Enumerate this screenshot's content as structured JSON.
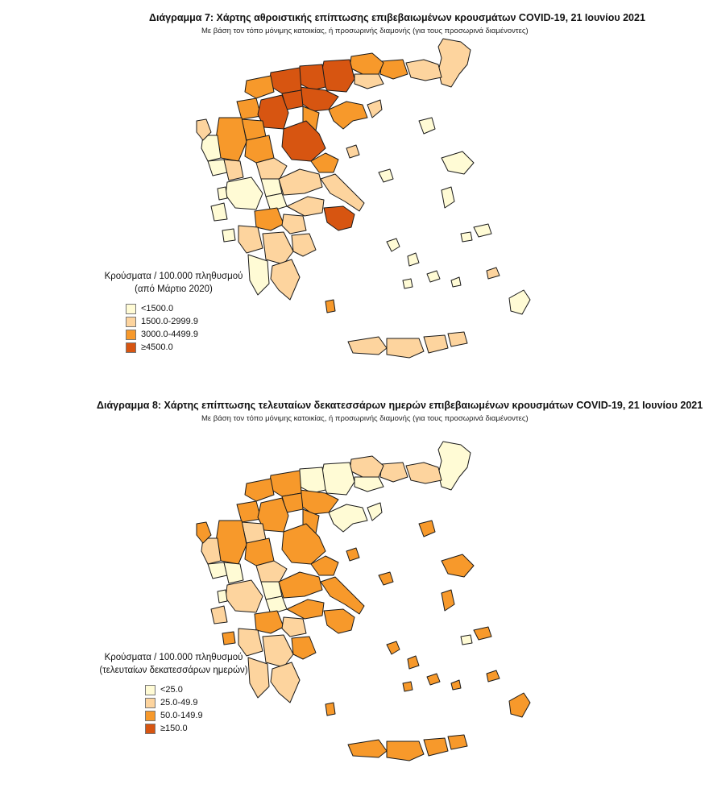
{
  "colors": {
    "c1": "#fffbd5",
    "c2": "#fdd49e",
    "c3": "#f7992b",
    "c4": "#d75511",
    "border": "#1a1a1a"
  },
  "maps": [
    {
      "title": "Διάγραμμα 7: Χάρτης αθροιστικής επίπτωσης επιβεβαιωμένων κρουσμάτων COVID-19, 21 Ιουνίου 2021",
      "subtitle": "Με βάση τον τόπο μόνιμης κατοικίας, ή προσωρινής διαμονής (για τους προσωρινά διαμένοντες)",
      "legend": {
        "title_line1": "Κρούσματα / 100.000 πληθυσμού",
        "title_line2": "(από Μάρτιο 2020)",
        "items": [
          {
            "label": "<1500.0",
            "class": "c1"
          },
          {
            "label": "1500.0-2999.9",
            "class": "c2"
          },
          {
            "label": "3000.0-4499.9",
            "class": "c3"
          },
          {
            "label": "≥4500.0",
            "class": "c4"
          }
        ]
      },
      "region_classes": {
        "evros": "c2",
        "rodopi": "c2",
        "xanthi": "c3",
        "drama": "c3",
        "kavala": "c2",
        "thasos": "c3",
        "serres": "c4",
        "kilkis": "c4",
        "thessaloniki": "c4",
        "chalkidiki": "c3",
        "athos": "c2",
        "pella": "c4",
        "imathia": "c4",
        "pieria": "c3",
        "florina": "c3",
        "kastoria": "c3",
        "kozani": "c4",
        "grevena": "c3",
        "thesprotia": "c1",
        "ioannina": "c3",
        "corfu": "c2",
        "preveza": "c1",
        "arta": "c2",
        "trikala": "c3",
        "karditsa": "c2",
        "larisa": "c4",
        "magnesia": "c3",
        "aitoloakarnania": "c1",
        "evrytania": "c1",
        "fthiotida": "c2",
        "fokida": "c1",
        "viotia": "c2",
        "evia": "c2",
        "lefkada": "c1",
        "kefalonia": "c1",
        "zakynthos": "c1",
        "achaia": "c3",
        "ilia": "c2",
        "korinthia": "c2",
        "attica": "c4",
        "argolida": "c2",
        "arkadia": "c2",
        "messinia": "c1",
        "lakonia": "c2",
        "kythira": "c3",
        "lesvos": "c1",
        "chios": "c1",
        "samos": "c1",
        "limnos": "c1",
        "ikaria": "c1",
        "rhodes": "c1",
        "kos": "c2",
        "cyclades": "c1",
        "crete_west": "c2",
        "crete_central": "c2",
        "crete_east": "c2",
        "crete_far": "c2",
        "skyros": "c1",
        "sporades": "c2"
      }
    },
    {
      "title": "Διάγραμμα 8: Χάρτης επίπτωσης τελευταίων δεκατεσσάρων ημερών επιβεβαιωμένων κρουσμάτων COVID-19, 21 Ιουνίου 2021",
      "subtitle": "Με βάση τον τόπο μόνιμης κατοικίας, ή προσωρινής διαμονής (για τους προσωρινά διαμένοντες)",
      "legend": {
        "title_line1": "Κρούσματα / 100.000 πληθυσμού",
        "title_line2": "(τελευταίων δεκατεσσάρων ημερών)",
        "items": [
          {
            "label": "<25.0",
            "class": "c1"
          },
          {
            "label": "25.0-49.9",
            "class": "c2"
          },
          {
            "label": "50.0-149.9",
            "class": "c3"
          },
          {
            "label": "≥150.0",
            "class": "c4"
          }
        ]
      },
      "region_classes": {
        "evros": "c1",
        "rodopi": "c2",
        "xanthi": "c2",
        "drama": "c2",
        "kavala": "c1",
        "thasos": "c1",
        "serres": "c1",
        "kilkis": "c1",
        "thessaloniki": "c3",
        "chalkidiki": "c1",
        "athos": "c1",
        "pella": "c3",
        "imathia": "c3",
        "pieria": "c3",
        "florina": "c3",
        "kastoria": "c3",
        "kozani": "c3",
        "grevena": "c2",
        "thesprotia": "c2",
        "ioannina": "c3",
        "corfu": "c3",
        "preveza": "c1",
        "arta": "c1",
        "trikala": "c3",
        "karditsa": "c2",
        "larisa": "c3",
        "magnesia": "c3",
        "aitoloakarnania": "c2",
        "evrytania": "c1",
        "fthiotida": "c3",
        "fokida": "c1",
        "viotia": "c3",
        "evia": "c3",
        "lefkada": "c1",
        "kefalonia": "c2",
        "zakynthos": "c3",
        "achaia": "c3",
        "ilia": "c2",
        "korinthia": "c2",
        "attica": "c3",
        "argolida": "c3",
        "arkadia": "c2",
        "messinia": "c2",
        "lakonia": "c2",
        "kythira": "c3",
        "lesvos": "c3",
        "chios": "c3",
        "samos": "c3",
        "limnos": "c3",
        "ikaria": "c1",
        "rhodes": "c3",
        "kos": "c3",
        "cyclades": "c3",
        "crete_west": "c3",
        "crete_central": "c3",
        "crete_east": "c3",
        "crete_far": "c3",
        "skyros": "c3",
        "sporades": "c3"
      }
    }
  ]
}
